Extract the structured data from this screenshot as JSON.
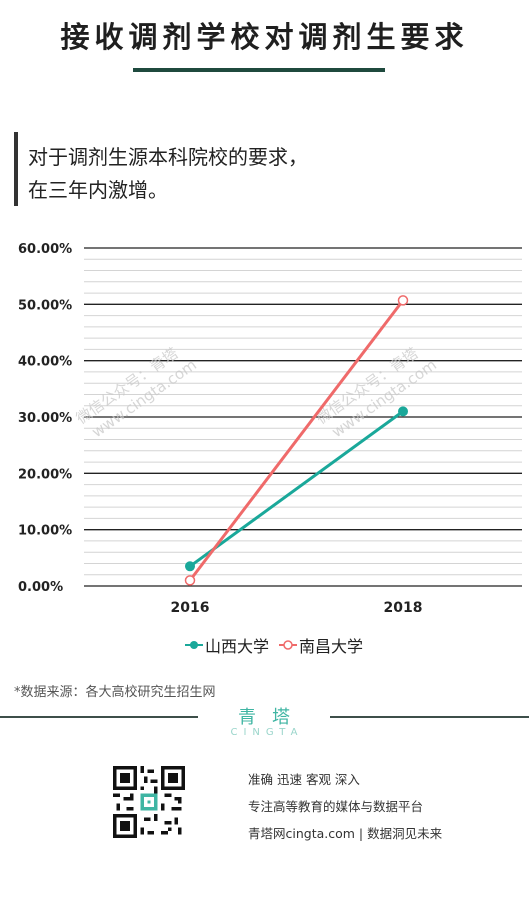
{
  "header": {
    "title": "接收调剂学校对调剂生要求"
  },
  "intro": {
    "line1": "对于调剂生源本科院校的要求，",
    "line2": "在三年内激增。"
  },
  "chart_data": {
    "type": "line",
    "x": [
      "2016",
      "2018"
    ],
    "series": [
      {
        "name": "山西大学",
        "values": [
          3.5,
          31.0
        ],
        "color": "#1aa89a",
        "marker": "filled-circle"
      },
      {
        "name": "南昌大学",
        "values": [
          1.0,
          50.7
        ],
        "color": "#ef6a6a",
        "marker": "hollow-circle"
      }
    ],
    "y_ticks": [
      "0.00%",
      "10.00%",
      "20.00%",
      "30.00%",
      "40.00%",
      "50.00%",
      "60.00%"
    ],
    "ylim": [
      0,
      60
    ],
    "grid": true,
    "legend_position": "bottom",
    "watermark": [
      "微信公众号：青塔",
      "www.cingta.com"
    ]
  },
  "source": {
    "text": "*数据来源：各大高校研究生招生网"
  },
  "brand": {
    "name_cn": "青塔",
    "name_en": "CINGTA"
  },
  "footer": {
    "slogan1": "准确 迅速 客观 深入",
    "slogan2": "专注高等教育的媒体与数据平台",
    "slogan3": "青塔网cingta.com | 数据洞见未来"
  }
}
